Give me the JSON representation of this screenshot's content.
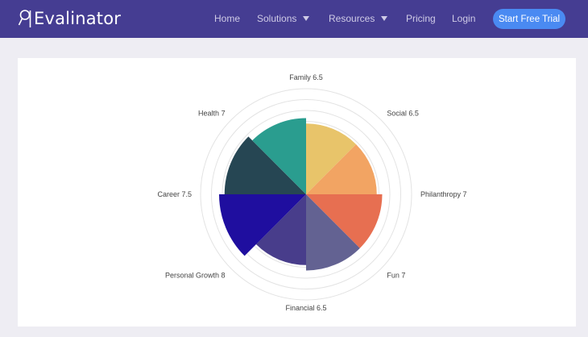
{
  "header": {
    "brand": "Evalinator",
    "nav": {
      "home": "Home",
      "solutions": "Solutions",
      "resources": "Resources",
      "pricing": "Pricing",
      "login": "Login"
    },
    "cta_label": "Start Free Trial"
  },
  "chart_data": {
    "type": "polar-area",
    "max": 10,
    "categories": [
      "Family",
      "Social",
      "Philanthropy",
      "Fun",
      "Financial",
      "Personal Growth",
      "Career",
      "Health"
    ],
    "values": [
      6.5,
      6.5,
      7,
      7,
      6.5,
      8,
      7.5,
      7
    ],
    "labels": [
      "Family 6.5",
      "Social 6.5",
      "Philanthropy 7",
      "Fun 7",
      "Financial 6.5",
      "Personal Growth 8",
      "Career 7.5",
      "Health 7"
    ],
    "colors": [
      "#e8c46a",
      "#f2a463",
      "#e76f51",
      "#636292",
      "#483d8b",
      "#1f0e9f",
      "#264653",
      "#2a9d8f"
    ]
  }
}
